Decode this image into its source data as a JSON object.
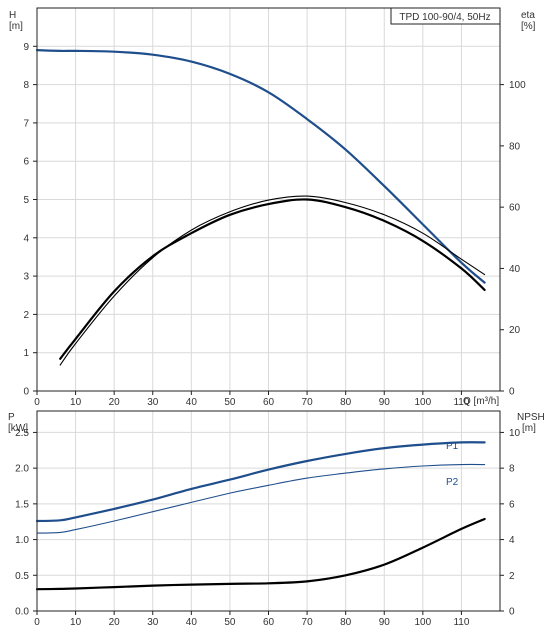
{
  "chart_data": [
    {
      "type": "line",
      "panel": "top",
      "title": "TPD 100-90/4, 50Hz",
      "left_axis": {
        "label_line1": "H",
        "label_line2": "[m]",
        "range": [
          0,
          10
        ],
        "ticks": [
          0,
          1,
          2,
          3,
          4,
          5,
          6,
          7,
          8,
          9
        ]
      },
      "right_axis": {
        "label_line1": "eta",
        "label_line2": "[%]",
        "range": [
          0,
          125
        ],
        "ticks": [
          0,
          20,
          40,
          60,
          80,
          100
        ]
      },
      "x_axis": {
        "label": "Q [m³/h]",
        "range": [
          0,
          120
        ],
        "ticks": [
          0,
          10,
          20,
          30,
          40,
          50,
          60,
          70,
          80,
          90,
          100,
          110
        ]
      },
      "grid": true,
      "series": [
        {
          "key": "H",
          "color": "#1f4e8c",
          "width": 2.2,
          "axis": "left",
          "x": [
            0,
            6,
            10,
            20,
            30,
            40,
            50,
            60,
            70,
            80,
            90,
            100,
            110,
            116
          ],
          "y": [
            8.9,
            8.88,
            8.88,
            8.86,
            8.78,
            8.6,
            8.28,
            7.8,
            7.1,
            6.3,
            5.35,
            4.35,
            3.35,
            2.83
          ]
        },
        {
          "key": "eta1",
          "color": "#000000",
          "width": 1.1,
          "axis": "right",
          "x": [
            6,
            10,
            20,
            30,
            40,
            50,
            60,
            70,
            80,
            90,
            100,
            110,
            116
          ],
          "y": [
            8.5,
            15.5,
            31,
            43.5,
            52.5,
            58.5,
            62.3,
            63.6,
            61.5,
            57.5,
            51.5,
            43,
            38
          ]
        },
        {
          "key": "eta2",
          "color": "#000000",
          "width": 2.2,
          "axis": "right",
          "x": [
            6,
            10,
            20,
            30,
            40,
            50,
            60,
            70,
            80,
            90,
            100,
            110,
            116
          ],
          "y": [
            10.5,
            17,
            32.5,
            44,
            51.5,
            57.5,
            61,
            62.5,
            60,
            55.5,
            49,
            40,
            33
          ]
        }
      ]
    },
    {
      "type": "line",
      "panel": "bottom",
      "left_axis": {
        "label_line1": "P",
        "label_line2": "[kW]",
        "range": [
          0,
          2.8
        ],
        "ticks": [
          0.0,
          0.5,
          1.0,
          1.5,
          2.0,
          2.5
        ]
      },
      "right_axis": {
        "label_line1": "NPSH",
        "label_line2": "[m]",
        "range": [
          0,
          11.2
        ],
        "ticks": [
          0,
          2,
          4,
          6,
          8,
          10
        ]
      },
      "x_axis": {
        "range": [
          0,
          120
        ],
        "ticks": [
          0,
          10,
          20,
          30,
          40,
          50,
          60,
          70,
          80,
          90,
          100,
          110
        ]
      },
      "grid": true,
      "series": [
        {
          "key": "P1",
          "name": "P1",
          "color": "#1f4e8c",
          "width": 2.2,
          "axis": "left",
          "x": [
            0,
            6,
            10,
            20,
            30,
            40,
            50,
            60,
            70,
            80,
            90,
            100,
            110,
            116
          ],
          "y": [
            1.26,
            1.27,
            1.31,
            1.43,
            1.56,
            1.71,
            1.84,
            1.98,
            2.1,
            2.2,
            2.28,
            2.33,
            2.36,
            2.36
          ]
        },
        {
          "key": "P2",
          "name": "P2",
          "color": "#1f4e8c",
          "width": 1.1,
          "axis": "left",
          "x": [
            0,
            6,
            10,
            20,
            30,
            40,
            50,
            60,
            70,
            80,
            90,
            100,
            110,
            116
          ],
          "y": [
            1.09,
            1.1,
            1.14,
            1.26,
            1.39,
            1.52,
            1.65,
            1.76,
            1.86,
            1.93,
            1.99,
            2.03,
            2.05,
            2.05
          ]
        },
        {
          "key": "NPSH",
          "color": "#000000",
          "width": 2.2,
          "axis": "right",
          "x": [
            0,
            6,
            10,
            20,
            30,
            40,
            50,
            60,
            70,
            80,
            90,
            100,
            110,
            116
          ],
          "y": [
            1.22,
            1.24,
            1.26,
            1.34,
            1.42,
            1.48,
            1.52,
            1.55,
            1.66,
            2.0,
            2.6,
            3.55,
            4.6,
            5.15
          ]
        }
      ]
    }
  ]
}
